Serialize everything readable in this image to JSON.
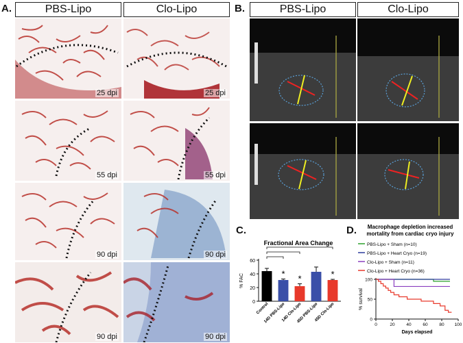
{
  "panelA": {
    "label": "A.",
    "col_left": "PBS-Lipo",
    "col_right": "Clo-Lipo",
    "rows": [
      {
        "left_dpi": "25 dpi",
        "right_dpi": "25 dpi"
      },
      {
        "left_dpi": "55 dpi",
        "right_dpi": "55 dpi"
      },
      {
        "left_dpi": "90 dpi",
        "right_dpi": "90 dpi"
      },
      {
        "left_dpi": "90 dpi",
        "right_dpi": "90 dpi"
      }
    ]
  },
  "panelB": {
    "label": "B.",
    "col_left": "PBS-Lipo",
    "col_right": "Clo-Lipo"
  },
  "panelC": {
    "label": "C.",
    "chart_data": {
      "type": "bar",
      "title": "Fractional Area Change",
      "ylabel": "% FAC",
      "ylim": [
        0,
        60
      ],
      "yticks": [
        "0",
        "20",
        "40",
        "60"
      ],
      "categories": [
        "Control",
        "14D PBS-Lipo",
        "14D Clo-Lipo",
        "45D PBS-Lipo",
        "45D Clo-Lipo"
      ],
      "values": [
        44,
        31,
        22,
        43,
        31
      ],
      "errors": [
        4,
        1.5,
        3.5,
        7,
        1
      ],
      "colors": [
        "#000000",
        "#3a4fa8",
        "#e8392b",
        "#3a4fa8",
        "#e8392b"
      ],
      "significance_marks": [
        "*",
        "*",
        "*"
      ]
    }
  },
  "panelD": {
    "label": "D.",
    "chart_data": {
      "type": "line",
      "title": "Macrophage depletion increased mortality from cardiac cryo injury",
      "title_line1": "Macrophage depletion increased",
      "title_line2": "mortality from cardiac cryo injury",
      "xlabel": "Days elapsed",
      "ylabel": "% survival",
      "xlim": [
        0,
        100
      ],
      "ylim": [
        0,
        100
      ],
      "xticks": [
        "0",
        "20",
        "40",
        "60",
        "80",
        "100"
      ],
      "yticks": [
        "0",
        "50",
        "100"
      ],
      "series": [
        {
          "name": "PBS-Lipo + Sham (n=10)",
          "color": "#2aa02a",
          "x": [
            0,
            70,
            70,
            90
          ],
          "y": [
            100,
            100,
            95,
            95
          ]
        },
        {
          "name": "PBS-Lipo + Heart Cryo (n=19)",
          "color": "#2c3c9c",
          "x": [
            0,
            90
          ],
          "y": [
            100,
            100
          ]
        },
        {
          "name": "Clo-Lipo + Sham (n=11)",
          "color": "#8a3fbf",
          "x": [
            0,
            22,
            22,
            90
          ],
          "y": [
            100,
            100,
            82,
            82
          ]
        },
        {
          "name": "Clo-Lipo + Heart Cryo (n=36)",
          "color": "#e8392b",
          "x": [
            0,
            3,
            3,
            6,
            6,
            9,
            9,
            12,
            12,
            15,
            15,
            18,
            18,
            22,
            22,
            28,
            28,
            38,
            38,
            55,
            55,
            70,
            70,
            78,
            78,
            84,
            84,
            88,
            88,
            92
          ],
          "y": [
            100,
            100,
            95,
            95,
            89,
            89,
            83,
            83,
            78,
            78,
            72,
            72,
            67,
            67,
            61,
            61,
            56,
            56,
            50,
            50,
            45,
            45,
            39,
            39,
            33,
            33,
            22,
            22,
            17,
            17
          ]
        }
      ]
    }
  }
}
